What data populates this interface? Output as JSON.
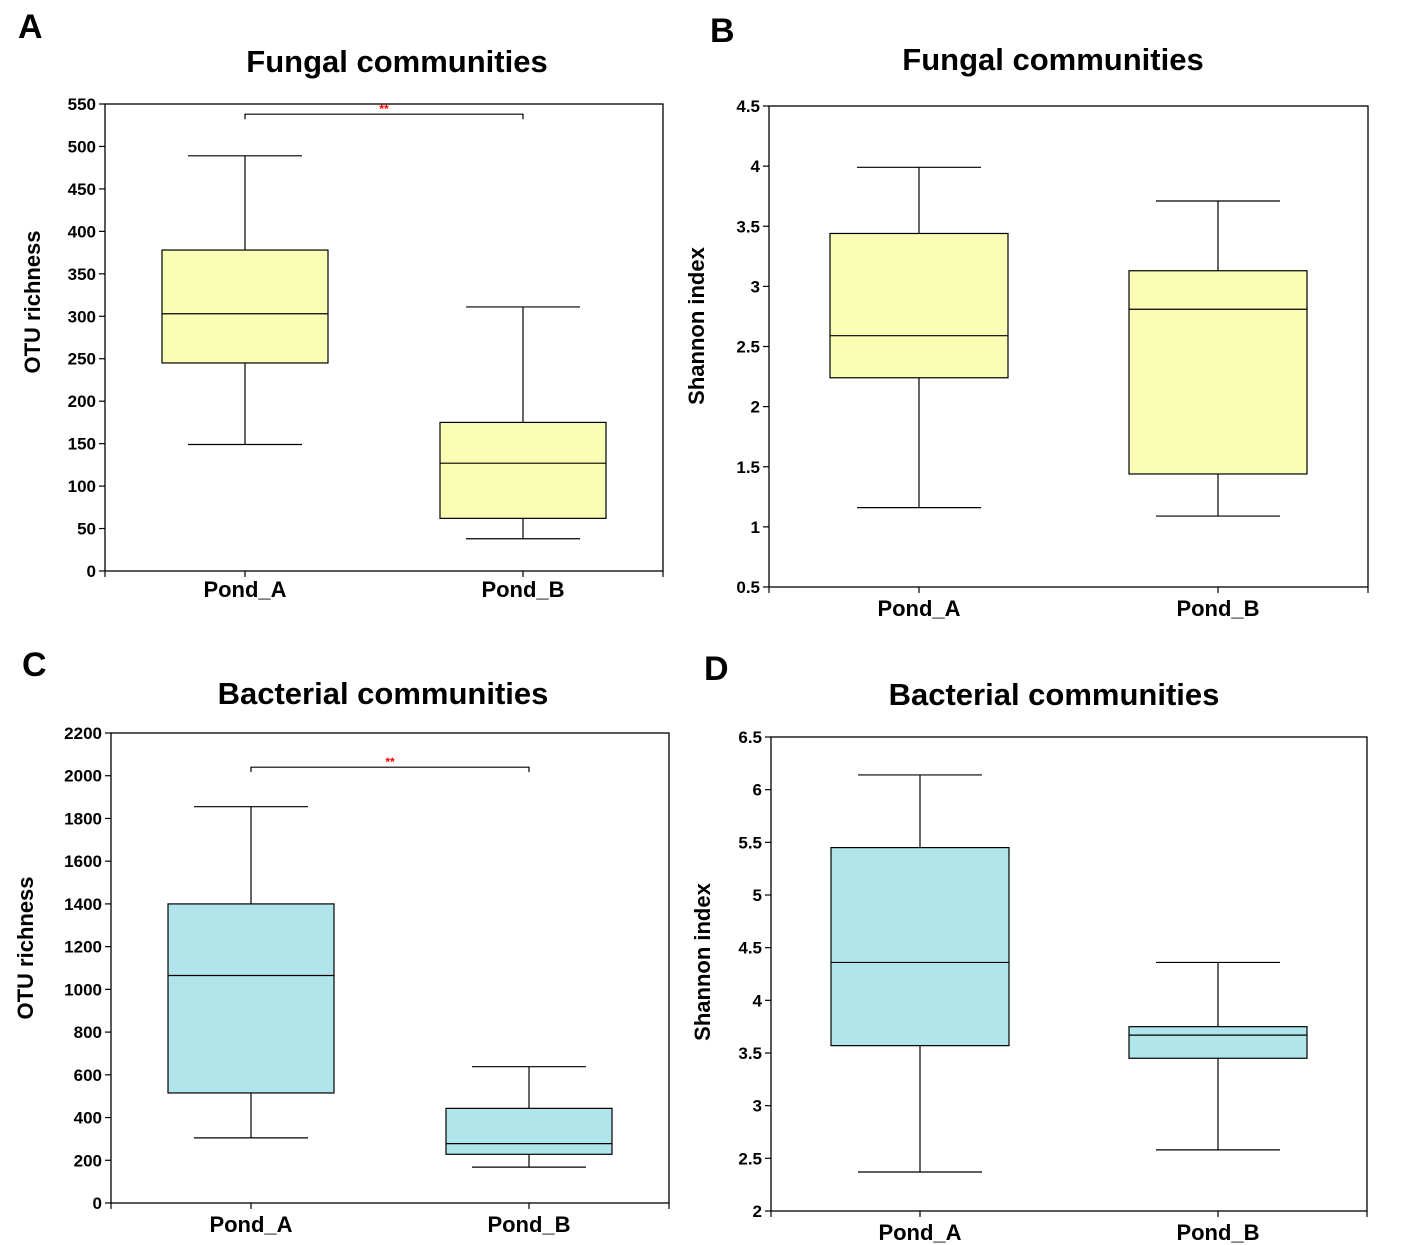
{
  "chart_data": [
    {
      "panel": "A",
      "type": "box",
      "title": "Fungal communities",
      "xlabel": "",
      "ylabel": "OTU richness",
      "ylim": [
        0,
        550
      ],
      "yticks": [
        0,
        50,
        100,
        150,
        200,
        250,
        300,
        350,
        400,
        450,
        500,
        550
      ],
      "ytick_labels": [
        "0",
        "50",
        "100",
        "150",
        "200",
        "250",
        "300",
        "350",
        "400",
        "450",
        "500",
        "550"
      ],
      "categories": [
        "Pond_A",
        "Pond_B"
      ],
      "boxes": [
        {
          "category": "Pond_A",
          "min": 149,
          "q1": 245,
          "median": 303,
          "q3": 378,
          "max": 489
        },
        {
          "category": "Pond_B",
          "min": 38,
          "q1": 62,
          "median": 127,
          "q3": 175,
          "max": 311
        }
      ],
      "box_color": "#fafdb4",
      "significance": {
        "label": "**",
        "y": 538,
        "color": "#ff0000"
      },
      "grid": false
    },
    {
      "panel": "B",
      "type": "box",
      "title": "Fungal communities",
      "xlabel": "",
      "ylabel": "Shannon index",
      "ylim": [
        0.5,
        4.5
      ],
      "yticks": [
        0.5,
        1,
        1.5,
        2,
        2.5,
        3,
        3.5,
        4,
        4.5
      ],
      "ytick_labels": [
        "0.5",
        "1",
        "1.5",
        "2",
        "2.5",
        "3",
        "3.5",
        "4",
        "4.5"
      ],
      "categories": [
        "Pond_A",
        "Pond_B"
      ],
      "boxes": [
        {
          "category": "Pond_A",
          "min": 1.16,
          "q1": 2.24,
          "median": 2.59,
          "q3": 3.44,
          "max": 3.99
        },
        {
          "category": "Pond_B",
          "min": 1.09,
          "q1": 1.44,
          "median": 2.81,
          "q3": 3.13,
          "max": 3.71
        }
      ],
      "box_color": "#fafdb4",
      "grid": false
    },
    {
      "panel": "C",
      "type": "box",
      "title": "Bacterial communities",
      "xlabel": "",
      "ylabel": "OTU richness",
      "ylim": [
        0,
        2200
      ],
      "yticks": [
        0,
        200,
        400,
        600,
        800,
        1000,
        1200,
        1400,
        1600,
        1800,
        2000,
        2200
      ],
      "ytick_labels": [
        "0",
        "200",
        "400",
        "600",
        "800",
        "1000",
        "1200",
        "1400",
        "1600",
        "1800",
        "2000",
        "2200"
      ],
      "categories": [
        "Pond_A",
        "Pond_B"
      ],
      "boxes": [
        {
          "category": "Pond_A",
          "min": 305,
          "q1": 515,
          "median": 1065,
          "q3": 1400,
          "max": 1855
        },
        {
          "category": "Pond_B",
          "min": 168,
          "q1": 228,
          "median": 278,
          "q3": 443,
          "max": 638
        }
      ],
      "box_color": "#b0e5ec",
      "significance": {
        "label": "**",
        "y": 2040,
        "color": "#ff0000"
      },
      "grid": false
    },
    {
      "panel": "D",
      "type": "box",
      "title": "Bacterial communities",
      "xlabel": "",
      "ylabel": "Shannon index",
      "ylim": [
        2,
        6.5
      ],
      "yticks": [
        2,
        2.5,
        3,
        3.5,
        4,
        4.5,
        5,
        5.5,
        6,
        6.5
      ],
      "ytick_labels": [
        "2",
        "2.5",
        "3",
        "3.5",
        "4",
        "4.5",
        "5",
        "5.5",
        "6",
        "6.5"
      ],
      "categories": [
        "Pond_A",
        "Pond_B"
      ],
      "boxes": [
        {
          "category": "Pond_A",
          "min": 2.37,
          "q1": 3.57,
          "median": 4.36,
          "q3": 5.45,
          "max": 6.14
        },
        {
          "category": "Pond_B",
          "min": 2.58,
          "q1": 3.45,
          "median": 3.67,
          "q3": 3.75,
          "max": 4.36
        }
      ],
      "box_color": "#b0e5ec",
      "grid": false
    }
  ]
}
